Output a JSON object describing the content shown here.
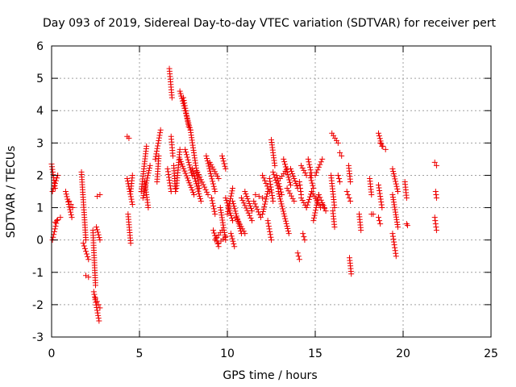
{
  "chart_data": {
    "type": "scatter",
    "title": "Day 093 of 2019, Sidereal Day-to-day VTEC variation (SDTVAR) for receiver pert",
    "xlabel": "GPS time / hours",
    "ylabel": "SDTVAR / TECUs",
    "xlim": [
      0,
      25
    ],
    "ylim": [
      -3,
      6
    ],
    "xticks": [
      0,
      5,
      10,
      15,
      20,
      25
    ],
    "yticks": [
      -3,
      -2,
      -1,
      0,
      1,
      2,
      3,
      4,
      5,
      6
    ],
    "xtick_labels": [
      "0",
      "5",
      "10",
      "15",
      "20",
      "25"
    ],
    "ytick_labels": [
      "-3",
      "-2",
      "-1",
      "0",
      "1",
      "2",
      "3",
      "4",
      "5",
      "6"
    ],
    "grid": true,
    "marker": "+",
    "color": "#ee0000",
    "series": [
      {
        "name": "SDTVAR",
        "segments": [
          [
            0.0,
            2.35,
            0.2,
            1.6
          ],
          [
            0.05,
            1.5,
            0.35,
            2.0
          ],
          [
            0.05,
            0.0,
            0.3,
            0.6
          ],
          [
            0.2,
            0.55,
            0.5,
            0.7
          ],
          [
            0.8,
            1.5,
            1.15,
            0.7
          ],
          [
            1.0,
            1.2,
            1.2,
            1.0
          ],
          [
            1.7,
            2.1,
            1.95,
            0.0
          ],
          [
            1.8,
            -0.1,
            2.1,
            -0.6
          ],
          [
            1.95,
            -1.1,
            2.1,
            -1.15
          ],
          [
            2.35,
            0.3,
            2.5,
            -1.4
          ],
          [
            2.4,
            -1.6,
            2.7,
            -2.5
          ],
          [
            2.5,
            -1.8,
            2.75,
            -2.1
          ],
          [
            2.55,
            0.4,
            2.75,
            0.0
          ],
          [
            2.6,
            1.35,
            2.75,
            1.4
          ],
          [
            4.3,
            3.2,
            4.4,
            3.15
          ],
          [
            4.3,
            1.9,
            4.6,
            1.1
          ],
          [
            4.35,
            0.8,
            4.5,
            -0.1
          ],
          [
            4.5,
            1.5,
            4.6,
            2.0
          ],
          [
            5.1,
            1.5,
            5.4,
            2.9
          ],
          [
            5.2,
            1.3,
            5.6,
            2.3
          ],
          [
            5.3,
            1.8,
            5.5,
            1.0
          ],
          [
            5.9,
            2.5,
            6.2,
            3.4
          ],
          [
            6.0,
            1.8,
            6.1,
            2.6
          ],
          [
            6.6,
            2.2,
            6.8,
            1.5
          ],
          [
            6.7,
            5.3,
            6.85,
            4.4
          ],
          [
            6.8,
            3.2,
            6.9,
            2.6
          ],
          [
            6.95,
            2.3,
            7.05,
            1.5
          ],
          [
            7.1,
            1.6,
            7.3,
            2.8
          ],
          [
            7.3,
            4.6,
            7.9,
            3.4
          ],
          [
            7.5,
            4.4,
            7.8,
            3.5
          ],
          [
            7.9,
            3.4,
            8.4,
            1.6
          ],
          [
            7.3,
            2.5,
            8.1,
            1.4
          ],
          [
            7.6,
            2.8,
            8.0,
            2.0
          ],
          [
            8.0,
            2.2,
            8.5,
            1.2
          ],
          [
            8.3,
            2.1,
            8.9,
            1.4
          ],
          [
            8.8,
            2.6,
            9.3,
            1.5
          ],
          [
            9.0,
            2.4,
            9.5,
            1.9
          ],
          [
            9.1,
            1.3,
            9.3,
            0.8
          ],
          [
            9.2,
            0.3,
            9.5,
            -0.2
          ],
          [
            9.3,
            0.0,
            9.7,
            0.3
          ],
          [
            9.6,
            1.0,
            9.9,
            0.0
          ],
          [
            9.7,
            2.6,
            9.9,
            2.2
          ],
          [
            9.5,
            -0.1,
            9.9,
            0.1
          ],
          [
            9.9,
            1.3,
            10.3,
            0.6
          ],
          [
            10.0,
            0.8,
            10.3,
            1.6
          ],
          [
            10.2,
            0.2,
            10.4,
            -0.2
          ],
          [
            10.3,
            1.2,
            10.8,
            0.2
          ],
          [
            10.5,
            0.7,
            11.0,
            0.2
          ],
          [
            10.8,
            1.3,
            11.4,
            0.6
          ],
          [
            11.0,
            1.5,
            11.4,
            0.9
          ],
          [
            11.5,
            1.2,
            11.9,
            0.7
          ],
          [
            11.6,
            1.4,
            12.0,
            1.3
          ],
          [
            12.0,
            2.0,
            12.4,
            1.5
          ],
          [
            12.0,
            0.8,
            12.3,
            1.5
          ],
          [
            12.4,
            1.9,
            12.6,
            1.2
          ],
          [
            12.3,
            0.6,
            12.5,
            0.0
          ],
          [
            12.5,
            3.1,
            12.7,
            2.3
          ],
          [
            12.6,
            2.1,
            12.9,
            1.6
          ],
          [
            12.8,
            2.0,
            13.1,
            1.4
          ],
          [
            12.9,
            1.5,
            13.5,
            0.2
          ],
          [
            13.0,
            1.9,
            13.4,
            2.2
          ],
          [
            13.2,
            2.5,
            13.6,
            1.7
          ],
          [
            13.4,
            1.6,
            13.8,
            1.2
          ],
          [
            13.6,
            2.2,
            14.0,
            1.6
          ],
          [
            14.1,
            1.8,
            14.2,
            1.4
          ],
          [
            14.0,
            -0.4,
            14.1,
            -0.6
          ],
          [
            14.2,
            2.3,
            14.5,
            2.0
          ],
          [
            14.2,
            1.3,
            14.5,
            1.0
          ],
          [
            14.3,
            0.2,
            14.4,
            0.0
          ],
          [
            14.5,
            1.0,
            14.8,
            1.5
          ],
          [
            14.6,
            2.5,
            14.8,
            2.0
          ],
          [
            14.8,
            1.5,
            15.3,
            1.0
          ],
          [
            14.7,
            2.0,
            14.9,
            1.6
          ],
          [
            14.9,
            0.6,
            15.2,
            1.4
          ],
          [
            15.0,
            2.0,
            15.4,
            2.5
          ],
          [
            15.2,
            1.4,
            15.6,
            0.9
          ],
          [
            15.4,
            1.1,
            15.5,
            1.0
          ],
          [
            15.9,
            2.0,
            16.1,
            1.0
          ],
          [
            16.0,
            0.9,
            16.1,
            0.4
          ],
          [
            15.95,
            3.3,
            16.3,
            3.0
          ],
          [
            16.3,
            2.0,
            16.4,
            1.8
          ],
          [
            16.4,
            2.7,
            16.5,
            2.6
          ],
          [
            16.9,
            2.3,
            17.0,
            1.8
          ],
          [
            16.8,
            1.5,
            17.0,
            1.2
          ],
          [
            16.95,
            -0.55,
            17.05,
            -1.05
          ],
          [
            17.5,
            0.8,
            17.6,
            0.3
          ],
          [
            18.1,
            1.9,
            18.2,
            1.4
          ],
          [
            18.2,
            0.8,
            18.3,
            0.8
          ],
          [
            18.6,
            1.7,
            18.8,
            1.0
          ],
          [
            18.6,
            0.7,
            18.7,
            0.5
          ],
          [
            18.6,
            3.3,
            18.8,
            2.9
          ],
          [
            18.7,
            3.0,
            19.0,
            2.8
          ],
          [
            19.4,
            2.2,
            19.7,
            1.5
          ],
          [
            19.4,
            1.4,
            19.7,
            0.4
          ],
          [
            19.4,
            0.2,
            19.6,
            -0.5
          ],
          [
            20.1,
            1.8,
            20.2,
            1.3
          ],
          [
            20.2,
            0.5,
            20.25,
            0.45
          ],
          [
            21.8,
            0.7,
            21.9,
            0.3
          ],
          [
            21.85,
            1.5,
            21.9,
            1.3
          ],
          [
            21.8,
            2.4,
            21.9,
            2.3
          ]
        ]
      }
    ]
  }
}
